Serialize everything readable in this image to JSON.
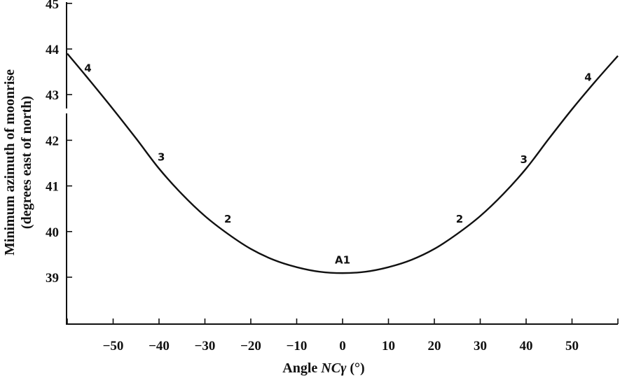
{
  "chart_data": {
    "type": "line",
    "xlabel_prefix": "Angle ",
    "xlabel_italic": "NCγ",
    "xlabel_suffix": " (°)",
    "ylabel_line1": "Minimum azimuth of moonrise",
    "ylabel_line2": "(degrees east of north)",
    "xlim": [
      -60,
      60
    ],
    "ylim": [
      38,
      45
    ],
    "x_ticks": [
      -60,
      -50,
      -40,
      -30,
      -20,
      -10,
      0,
      10,
      20,
      30,
      40,
      50,
      60
    ],
    "x_tick_labels": [
      "−50",
      "−40",
      "−30",
      "−20",
      "−10",
      "0",
      "10",
      "20",
      "30",
      "40",
      "50"
    ],
    "x_tick_label_values": [
      -50,
      -40,
      -30,
      -20,
      -10,
      0,
      10,
      20,
      30,
      40,
      50
    ],
    "y_ticks": [
      39,
      40,
      41,
      42,
      43,
      44,
      45
    ],
    "y_tick_labels": [
      "39",
      "40",
      "41",
      "42",
      "43",
      "44",
      "45"
    ],
    "axis_break": "y between 43 and 42.5",
    "series": [
      {
        "x": [
          -60,
          -56,
          -50,
          -45,
          -40,
          -35,
          -30,
          -25,
          -20,
          -15,
          -10,
          -5,
          0,
          5,
          10,
          15,
          20,
          25,
          30,
          35,
          40,
          45,
          50,
          55,
          60
        ],
        "y": [
          43.9,
          43.42,
          42.68,
          42.04,
          41.38,
          40.82,
          40.34,
          39.95,
          39.62,
          39.38,
          39.22,
          39.12,
          39.09,
          39.12,
          39.22,
          39.38,
          39.62,
          39.95,
          40.34,
          40.82,
          41.38,
          42.04,
          42.68,
          43.28,
          43.85
        ]
      }
    ],
    "point_labels": [
      {
        "text": "4",
        "x": -55.5,
        "y": 43.5
      },
      {
        "text": "3",
        "x": -39.5,
        "y": 41.55
      },
      {
        "text": "2",
        "x": -25,
        "y": 40.2
      },
      {
        "text": "A1",
        "x": 0,
        "y": 39.3
      },
      {
        "text": "2",
        "x": 25.5,
        "y": 40.2
      },
      {
        "text": "3",
        "x": 39.5,
        "y": 41.5
      },
      {
        "text": "4",
        "x": 53.5,
        "y": 43.3
      }
    ]
  }
}
